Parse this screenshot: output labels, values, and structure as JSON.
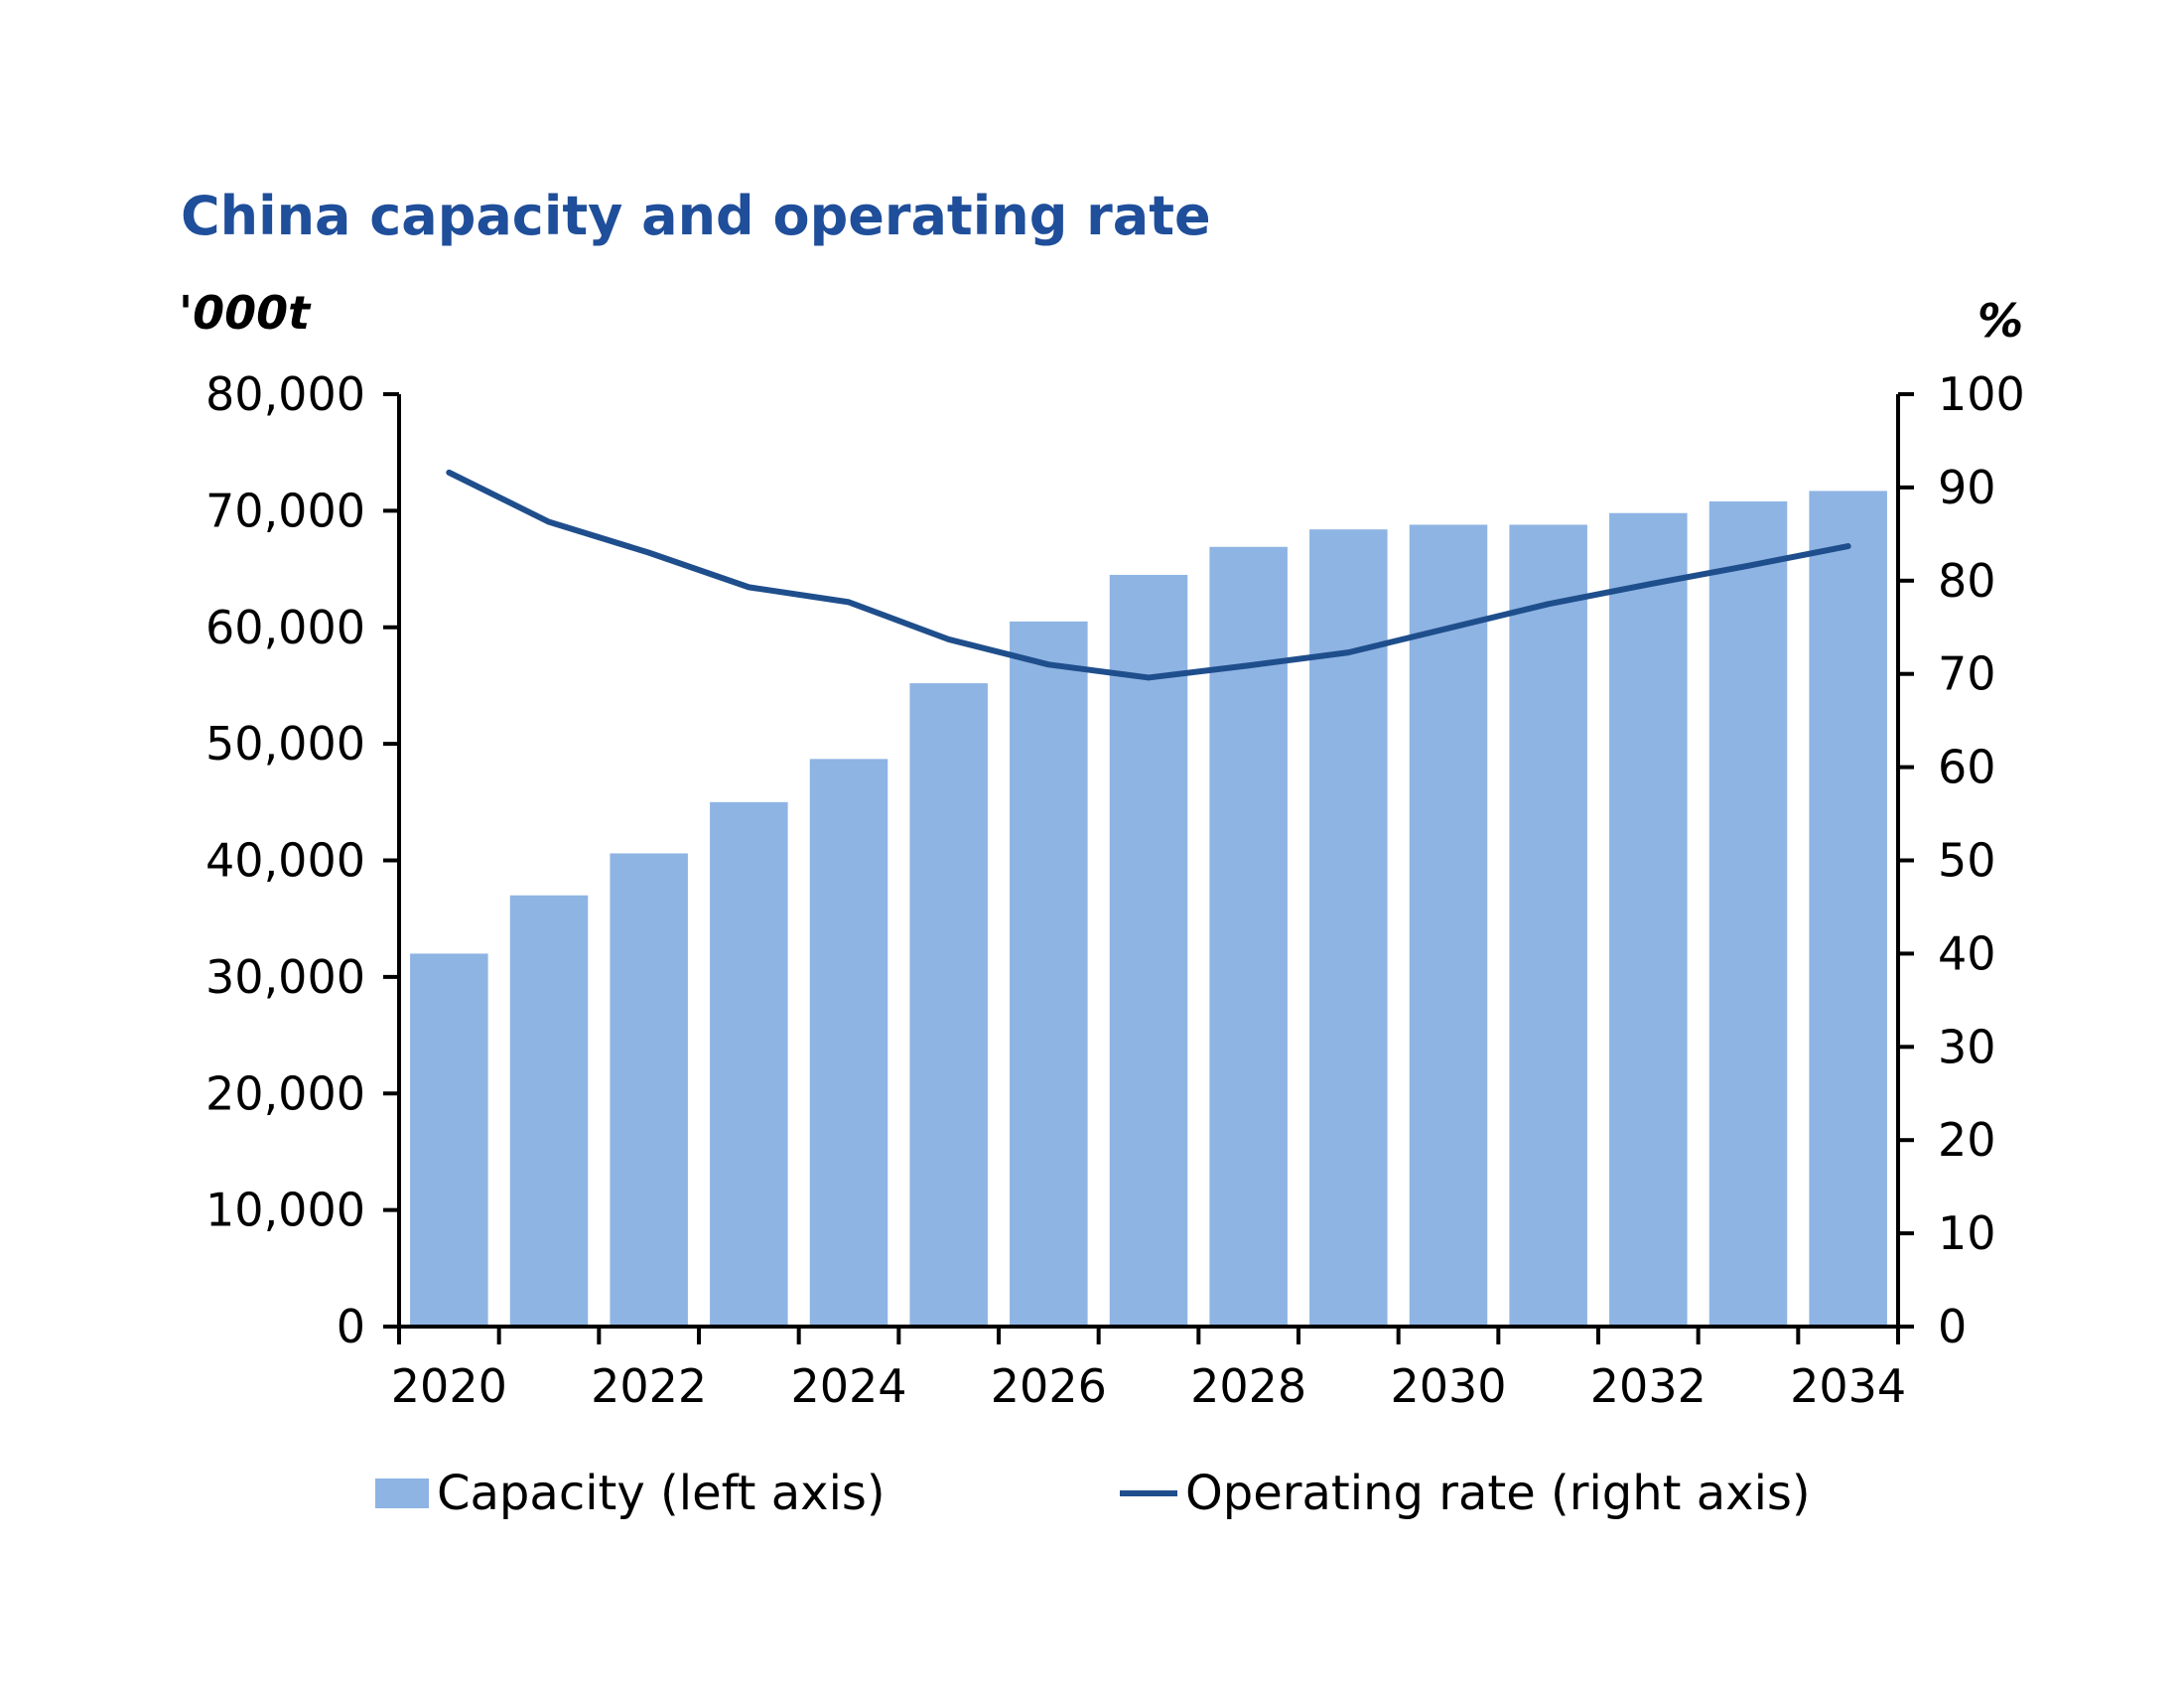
{
  "chart_data": {
    "type": "bar",
    "title": "China capacity and operating rate",
    "ylabel_left": "'000t",
    "ylabel_right": "%",
    "x": [
      2020,
      2021,
      2022,
      2023,
      2024,
      2025,
      2026,
      2027,
      2028,
      2029,
      2030,
      2031,
      2032,
      2033,
      2034
    ],
    "x_tick_labels": [
      "2020",
      "2022",
      "2024",
      "2026",
      "2028",
      "2030",
      "2032",
      "2034"
    ],
    "y_left_ticks": [
      "0",
      "10,000",
      "20,000",
      "30,000",
      "40,000",
      "50,000",
      "60,000",
      "70,000",
      "80,000"
    ],
    "y_right_ticks": [
      "0",
      "10",
      "20",
      "30",
      "40",
      "50",
      "60",
      "70",
      "80",
      "90",
      "100"
    ],
    "ylim_left": [
      0,
      80000
    ],
    "ylim_right": [
      0,
      100
    ],
    "series": [
      {
        "name": "Capacity (left axis)",
        "type": "bar",
        "axis": "left",
        "color": "#8EB4E3",
        "values": [
          32000,
          37000,
          40600,
          45000,
          48700,
          55200,
          60500,
          64500,
          66900,
          68400,
          68800,
          68800,
          69800,
          70800,
          71700
        ]
      },
      {
        "name": "Operating rate (right axis)",
        "type": "line",
        "axis": "right",
        "color": "#1F4E8C",
        "values": [
          91.6,
          86.3,
          83.0,
          79.3,
          77.7,
          73.7,
          71.0,
          69.6,
          70.9,
          72.3,
          74.9,
          77.5,
          79.6,
          81.6,
          83.7
        ]
      }
    ],
    "grid": false,
    "legend_position": "bottom"
  }
}
